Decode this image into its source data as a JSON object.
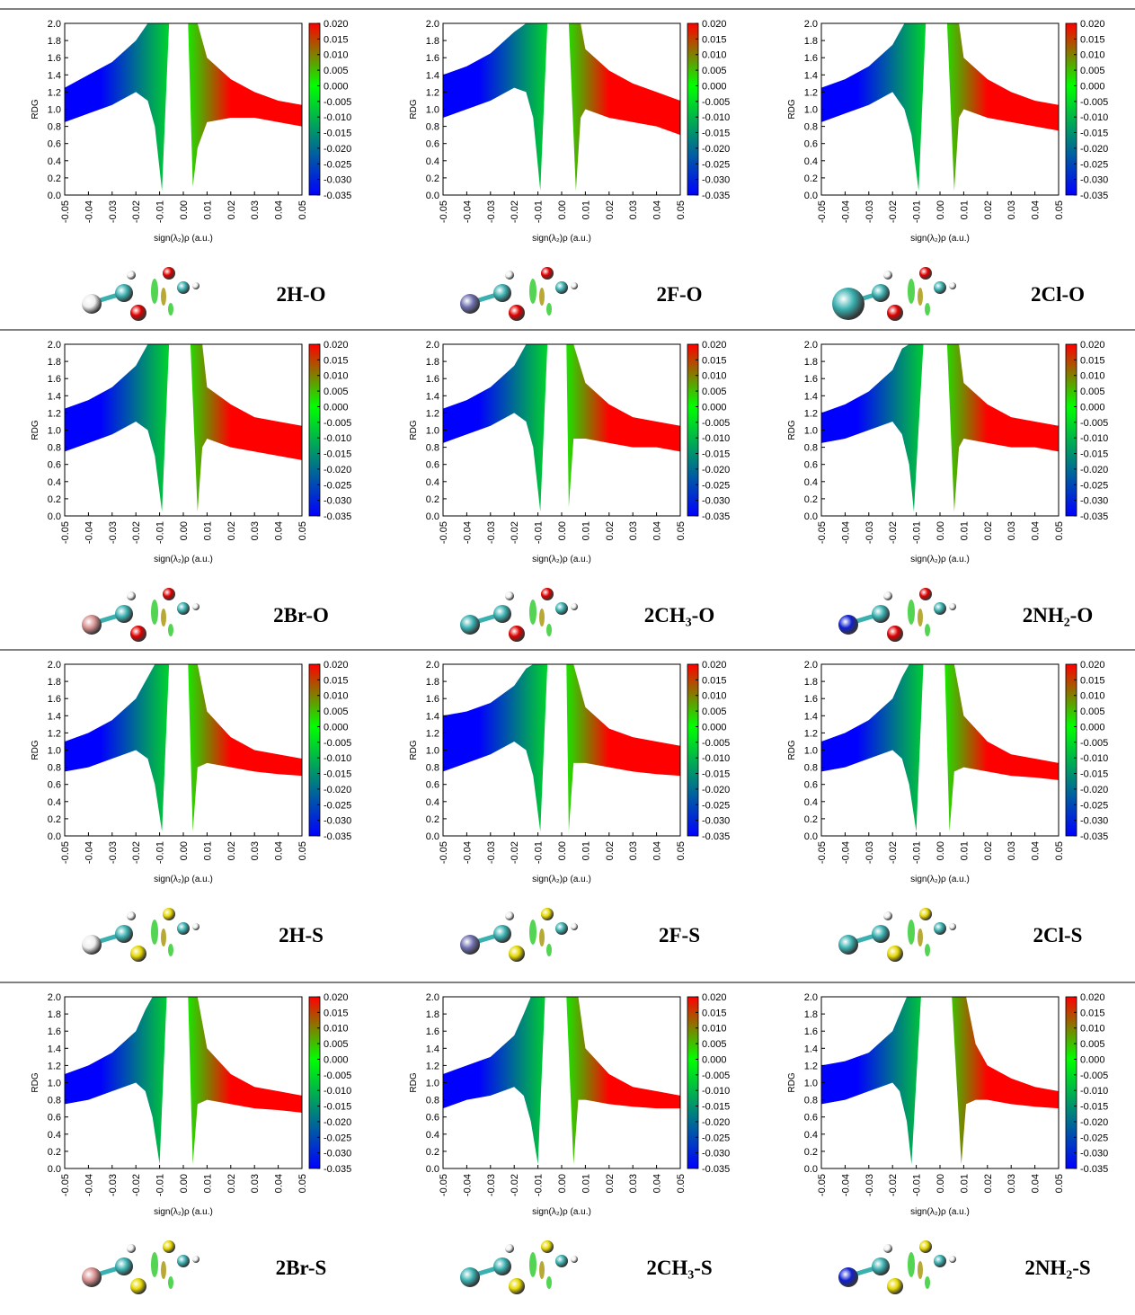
{
  "axes": {
    "xlabel": "sign(λ₂)ρ (a.u.)",
    "ylabel": "RDG",
    "xlim": [
      -0.05,
      0.05
    ],
    "ylim": [
      0,
      2
    ],
    "xticks": [
      -0.05,
      -0.04,
      -0.03,
      -0.02,
      -0.01,
      {
        "value": 0,
        "label": "0.00"
      },
      0.01,
      0.02,
      0.03,
      0.04,
      0.05
    ],
    "yticks": [
      {
        "value": 0,
        "label": "0.0"
      },
      0.2,
      0.4,
      0.6,
      0.8,
      {
        "value": 1,
        "label": "1.0"
      },
      1.2,
      1.4,
      1.6,
      1.8,
      {
        "value": 2,
        "label": "2.0"
      }
    ],
    "colorbar": {
      "lim": [
        -0.035,
        0.02
      ],
      "ticks": [
        {
          "value": 0.02,
          "label": "0.020"
        },
        0.015,
        {
          "value": 0.01,
          "label": "0.010"
        },
        0.005,
        {
          "value": 0,
          "label": "0.000"
        },
        -0.005,
        {
          "value": -0.01,
          "label": "-0.010"
        },
        -0.015,
        {
          "value": -0.02,
          "label": "-0.020"
        },
        -0.025,
        {
          "value": -0.03,
          "label": "-0.030"
        },
        -0.035
      ],
      "colormap": [
        {
          "value": -0.035,
          "color": "#0000ff"
        },
        {
          "value": 0,
          "color": "#00ff00"
        },
        {
          "value": 0.02,
          "color": "#ff0000"
        }
      ]
    }
  },
  "chart_data": [
    {
      "type": "scatter",
      "label": "2H-O",
      "x": [
        -0.05,
        -0.04,
        -0.03,
        -0.02,
        -0.015,
        -0.012,
        -0.009,
        -0.006,
        -0.001,
        0.002,
        0.004,
        0.006,
        0.01,
        0.02,
        0.03,
        0.04,
        0.05
      ],
      "series": [
        {
          "values": [
            1.25,
            1.4,
            1.55,
            1.8,
            2.0,
            2.0,
            2.0,
            2.0,
            null,
            2.0,
            2.0,
            2.0,
            1.6,
            1.35,
            1.2,
            1.1,
            1.05
          ]
        },
        {
          "values": [
            0.85,
            0.95,
            1.05,
            1.2,
            1.1,
            0.8,
            0.05,
            2.0,
            null,
            2.0,
            0.1,
            0.55,
            0.85,
            0.9,
            0.9,
            0.85,
            0.8
          ]
        }
      ]
    },
    {
      "type": "scatter",
      "label": "2F-O",
      "x": [
        -0.05,
        -0.04,
        -0.03,
        -0.02,
        -0.015,
        -0.012,
        -0.009,
        -0.006,
        -0.001,
        0.003,
        0.006,
        0.008,
        0.01,
        0.02,
        0.03,
        0.04,
        0.05
      ],
      "series": [
        {
          "values": [
            1.4,
            1.5,
            1.65,
            1.9,
            2.0,
            2.0,
            2.0,
            2.0,
            null,
            2.0,
            2.0,
            2.0,
            1.7,
            1.45,
            1.3,
            1.2,
            1.1
          ]
        },
        {
          "values": [
            0.9,
            1.0,
            1.1,
            1.25,
            1.2,
            0.9,
            0.05,
            2.0,
            null,
            2.0,
            0.05,
            0.9,
            1.0,
            0.9,
            0.85,
            0.8,
            0.7
          ]
        }
      ]
    },
    {
      "type": "scatter",
      "label": "2Cl-O",
      "x": [
        -0.05,
        -0.04,
        -0.03,
        -0.02,
        -0.015,
        -0.012,
        -0.009,
        -0.006,
        -0.001,
        0.003,
        0.006,
        0.008,
        0.01,
        0.02,
        0.03,
        0.04,
        0.05
      ],
      "series": [
        {
          "values": [
            1.25,
            1.35,
            1.5,
            1.75,
            2.0,
            2.0,
            2.0,
            2.0,
            null,
            2.0,
            2.0,
            2.0,
            1.6,
            1.35,
            1.2,
            1.1,
            1.05
          ]
        },
        {
          "values": [
            0.85,
            0.95,
            1.05,
            1.2,
            1.0,
            0.7,
            0.05,
            2.0,
            null,
            2.0,
            0.05,
            0.9,
            1.0,
            0.9,
            0.85,
            0.8,
            0.75
          ]
        }
      ]
    },
    {
      "type": "scatter",
      "label": "2Br-O",
      "x": [
        -0.05,
        -0.04,
        -0.03,
        -0.02,
        -0.015,
        -0.012,
        -0.009,
        -0.006,
        -0.001,
        0.003,
        0.006,
        0.008,
        0.01,
        0.02,
        0.03,
        0.04,
        0.05
      ],
      "series": [
        {
          "values": [
            1.25,
            1.35,
            1.5,
            1.75,
            2.0,
            2.0,
            2.0,
            2.0,
            null,
            2.0,
            2.0,
            2.0,
            1.5,
            1.3,
            1.15,
            1.1,
            1.05
          ]
        },
        {
          "values": [
            0.75,
            0.85,
            0.95,
            1.1,
            1.0,
            0.7,
            0.05,
            2.0,
            null,
            2.0,
            0.05,
            0.8,
            0.9,
            0.8,
            0.75,
            0.7,
            0.65
          ]
        }
      ]
    },
    {
      "type": "scatter",
      "label": "2CH₃-O",
      "x": [
        -0.05,
        -0.04,
        -0.03,
        -0.02,
        -0.015,
        -0.012,
        -0.009,
        -0.006,
        -0.001,
        0.002,
        0.003,
        0.005,
        0.01,
        0.02,
        0.03,
        0.04,
        0.05
      ],
      "series": [
        {
          "values": [
            1.25,
            1.35,
            1.5,
            1.75,
            2.0,
            2.0,
            2.0,
            2.0,
            null,
            2.0,
            2.0,
            2.0,
            1.55,
            1.3,
            1.15,
            1.1,
            1.05
          ]
        },
        {
          "values": [
            0.85,
            0.95,
            1.05,
            1.2,
            1.1,
            0.8,
            0.05,
            2.0,
            null,
            2.0,
            0.1,
            0.9,
            0.9,
            0.85,
            0.8,
            0.8,
            0.75
          ]
        }
      ]
    },
    {
      "type": "scatter",
      "label": "2NH₂-O",
      "x": [
        -0.05,
        -0.04,
        -0.03,
        -0.02,
        -0.016,
        -0.013,
        -0.011,
        -0.007,
        -0.001,
        0.003,
        0.006,
        0.008,
        0.01,
        0.02,
        0.03,
        0.04,
        0.05
      ],
      "series": [
        {
          "values": [
            1.2,
            1.3,
            1.45,
            1.7,
            1.95,
            2.0,
            2.0,
            2.0,
            null,
            2.0,
            2.0,
            2.0,
            1.55,
            1.3,
            1.15,
            1.1,
            1.05
          ]
        },
        {
          "values": [
            0.85,
            0.9,
            1.0,
            1.1,
            0.95,
            0.6,
            0.05,
            2.0,
            null,
            2.0,
            0.05,
            0.8,
            0.9,
            0.85,
            0.8,
            0.8,
            0.75
          ]
        }
      ]
    },
    {
      "type": "scatter",
      "label": "2H-S",
      "x": [
        -0.05,
        -0.04,
        -0.03,
        -0.02,
        -0.015,
        -0.012,
        -0.009,
        -0.006,
        -0.001,
        0.002,
        0.004,
        0.006,
        0.01,
        0.02,
        0.03,
        0.04,
        0.05
      ],
      "series": [
        {
          "values": [
            1.1,
            1.2,
            1.35,
            1.6,
            1.85,
            2.0,
            2.0,
            2.0,
            null,
            2.0,
            2.0,
            2.0,
            1.45,
            1.15,
            1.0,
            0.95,
            0.9
          ]
        },
        {
          "values": [
            0.75,
            0.8,
            0.9,
            1.0,
            0.9,
            0.6,
            0.05,
            2.0,
            null,
            2.0,
            0.05,
            0.8,
            0.85,
            0.8,
            0.75,
            0.72,
            0.7
          ]
        }
      ]
    },
    {
      "type": "scatter",
      "label": "2F-S",
      "x": [
        -0.05,
        -0.04,
        -0.03,
        -0.02,
        -0.015,
        -0.012,
        -0.009,
        -0.006,
        -0.001,
        0.002,
        0.003,
        0.005,
        0.01,
        0.02,
        0.03,
        0.04,
        0.05
      ],
      "series": [
        {
          "values": [
            1.4,
            1.45,
            1.55,
            1.75,
            1.95,
            2.0,
            2.0,
            2.0,
            null,
            2.0,
            2.0,
            2.0,
            1.5,
            1.25,
            1.15,
            1.1,
            1.05
          ]
        },
        {
          "values": [
            0.75,
            0.85,
            0.95,
            1.1,
            1.0,
            0.7,
            0.05,
            2.0,
            null,
            2.0,
            0.05,
            0.85,
            0.85,
            0.8,
            0.75,
            0.72,
            0.7
          ]
        }
      ]
    },
    {
      "type": "scatter",
      "label": "2Cl-S",
      "x": [
        -0.05,
        -0.04,
        -0.03,
        -0.02,
        -0.016,
        -0.013,
        -0.01,
        -0.007,
        -0.001,
        0.002,
        0.004,
        0.006,
        0.01,
        0.02,
        0.03,
        0.04,
        0.05
      ],
      "series": [
        {
          "values": [
            1.1,
            1.2,
            1.35,
            1.6,
            1.85,
            2.0,
            2.0,
            2.0,
            null,
            2.0,
            2.0,
            2.0,
            1.4,
            1.1,
            0.95,
            0.9,
            0.85
          ]
        },
        {
          "values": [
            0.75,
            0.8,
            0.9,
            1.0,
            0.9,
            0.6,
            0.05,
            2.0,
            null,
            2.0,
            0.05,
            0.75,
            0.8,
            0.75,
            0.7,
            0.68,
            0.65
          ]
        }
      ]
    },
    {
      "type": "scatter",
      "label": "2Br-S",
      "x": [
        -0.05,
        -0.04,
        -0.03,
        -0.02,
        -0.016,
        -0.013,
        -0.01,
        -0.007,
        -0.001,
        0.002,
        0.004,
        0.006,
        0.01,
        0.02,
        0.03,
        0.04,
        0.05
      ],
      "series": [
        {
          "values": [
            1.1,
            1.2,
            1.35,
            1.6,
            1.85,
            2.0,
            2.0,
            2.0,
            null,
            2.0,
            2.0,
            2.0,
            1.4,
            1.1,
            0.95,
            0.9,
            0.85
          ]
        },
        {
          "values": [
            0.75,
            0.8,
            0.9,
            1.0,
            0.9,
            0.6,
            0.05,
            2.0,
            null,
            2.0,
            0.05,
            0.75,
            0.8,
            0.75,
            0.7,
            0.68,
            0.65
          ]
        }
      ]
    },
    {
      "type": "scatter",
      "label": "2CH₃-S",
      "x": [
        -0.05,
        -0.04,
        -0.03,
        -0.02,
        -0.016,
        -0.013,
        -0.01,
        -0.007,
        -0.001,
        0.002,
        0.005,
        0.007,
        0.01,
        0.02,
        0.03,
        0.04,
        0.05
      ],
      "series": [
        {
          "values": [
            1.1,
            1.2,
            1.3,
            1.55,
            1.8,
            2.0,
            2.0,
            2.0,
            null,
            2.0,
            2.0,
            2.0,
            1.4,
            1.1,
            0.95,
            0.9,
            0.85
          ]
        },
        {
          "values": [
            0.7,
            0.8,
            0.85,
            0.95,
            0.85,
            0.55,
            0.05,
            2.0,
            null,
            2.0,
            0.05,
            0.8,
            0.8,
            0.75,
            0.72,
            0.7,
            0.7
          ]
        }
      ]
    },
    {
      "type": "scatter",
      "label": "2NH₂-S",
      "x": [
        -0.05,
        -0.04,
        -0.03,
        -0.02,
        -0.017,
        -0.014,
        -0.012,
        -0.008,
        -0.001,
        0.005,
        0.009,
        0.011,
        0.015,
        0.02,
        0.03,
        0.04,
        0.05
      ],
      "series": [
        {
          "values": [
            1.2,
            1.25,
            1.35,
            1.6,
            1.8,
            2.0,
            2.0,
            2.0,
            null,
            2.0,
            2.0,
            2.0,
            1.45,
            1.2,
            1.05,
            0.95,
            0.9
          ]
        },
        {
          "values": [
            0.75,
            0.8,
            0.9,
            1.0,
            0.9,
            0.55,
            0.05,
            2.0,
            null,
            2.0,
            0.05,
            0.75,
            0.8,
            0.8,
            0.75,
            0.72,
            0.7
          ]
        }
      ]
    }
  ]
}
